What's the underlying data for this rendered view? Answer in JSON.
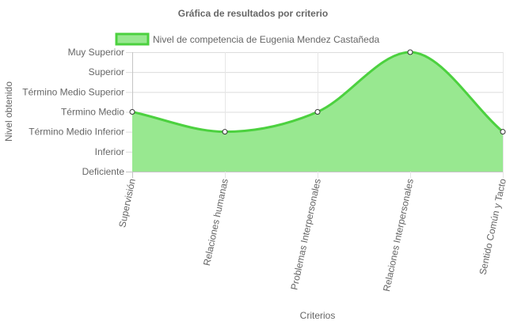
{
  "chart_data": {
    "type": "area",
    "title": "Gráfica de resultados por criterio",
    "xlabel": "Criterios",
    "ylabel": "Nivel obtenido",
    "legend_position": "top",
    "grid": true,
    "y_categories": [
      "Deficiente",
      "Inferior",
      "Término Medio Inferior",
      "Término Medio",
      "Término Medio Superior",
      "Superior",
      "Muy Superior"
    ],
    "ylim": [
      0,
      6
    ],
    "categories": [
      "Supervisión",
      "Relaciones humanas",
      "Problemas Interpersonales",
      "Relaciones Interpersonales",
      "Sentido Común y Tacto"
    ],
    "series": [
      {
        "name": "Nivel de competencia de  Eugenia Mendez Castañeda",
        "values": [
          3,
          2,
          3,
          6,
          2
        ],
        "border_color": "#4cd13f",
        "fill_color": "#98e890",
        "point_fill": "#ffffff",
        "point_stroke": "#333333"
      }
    ]
  }
}
